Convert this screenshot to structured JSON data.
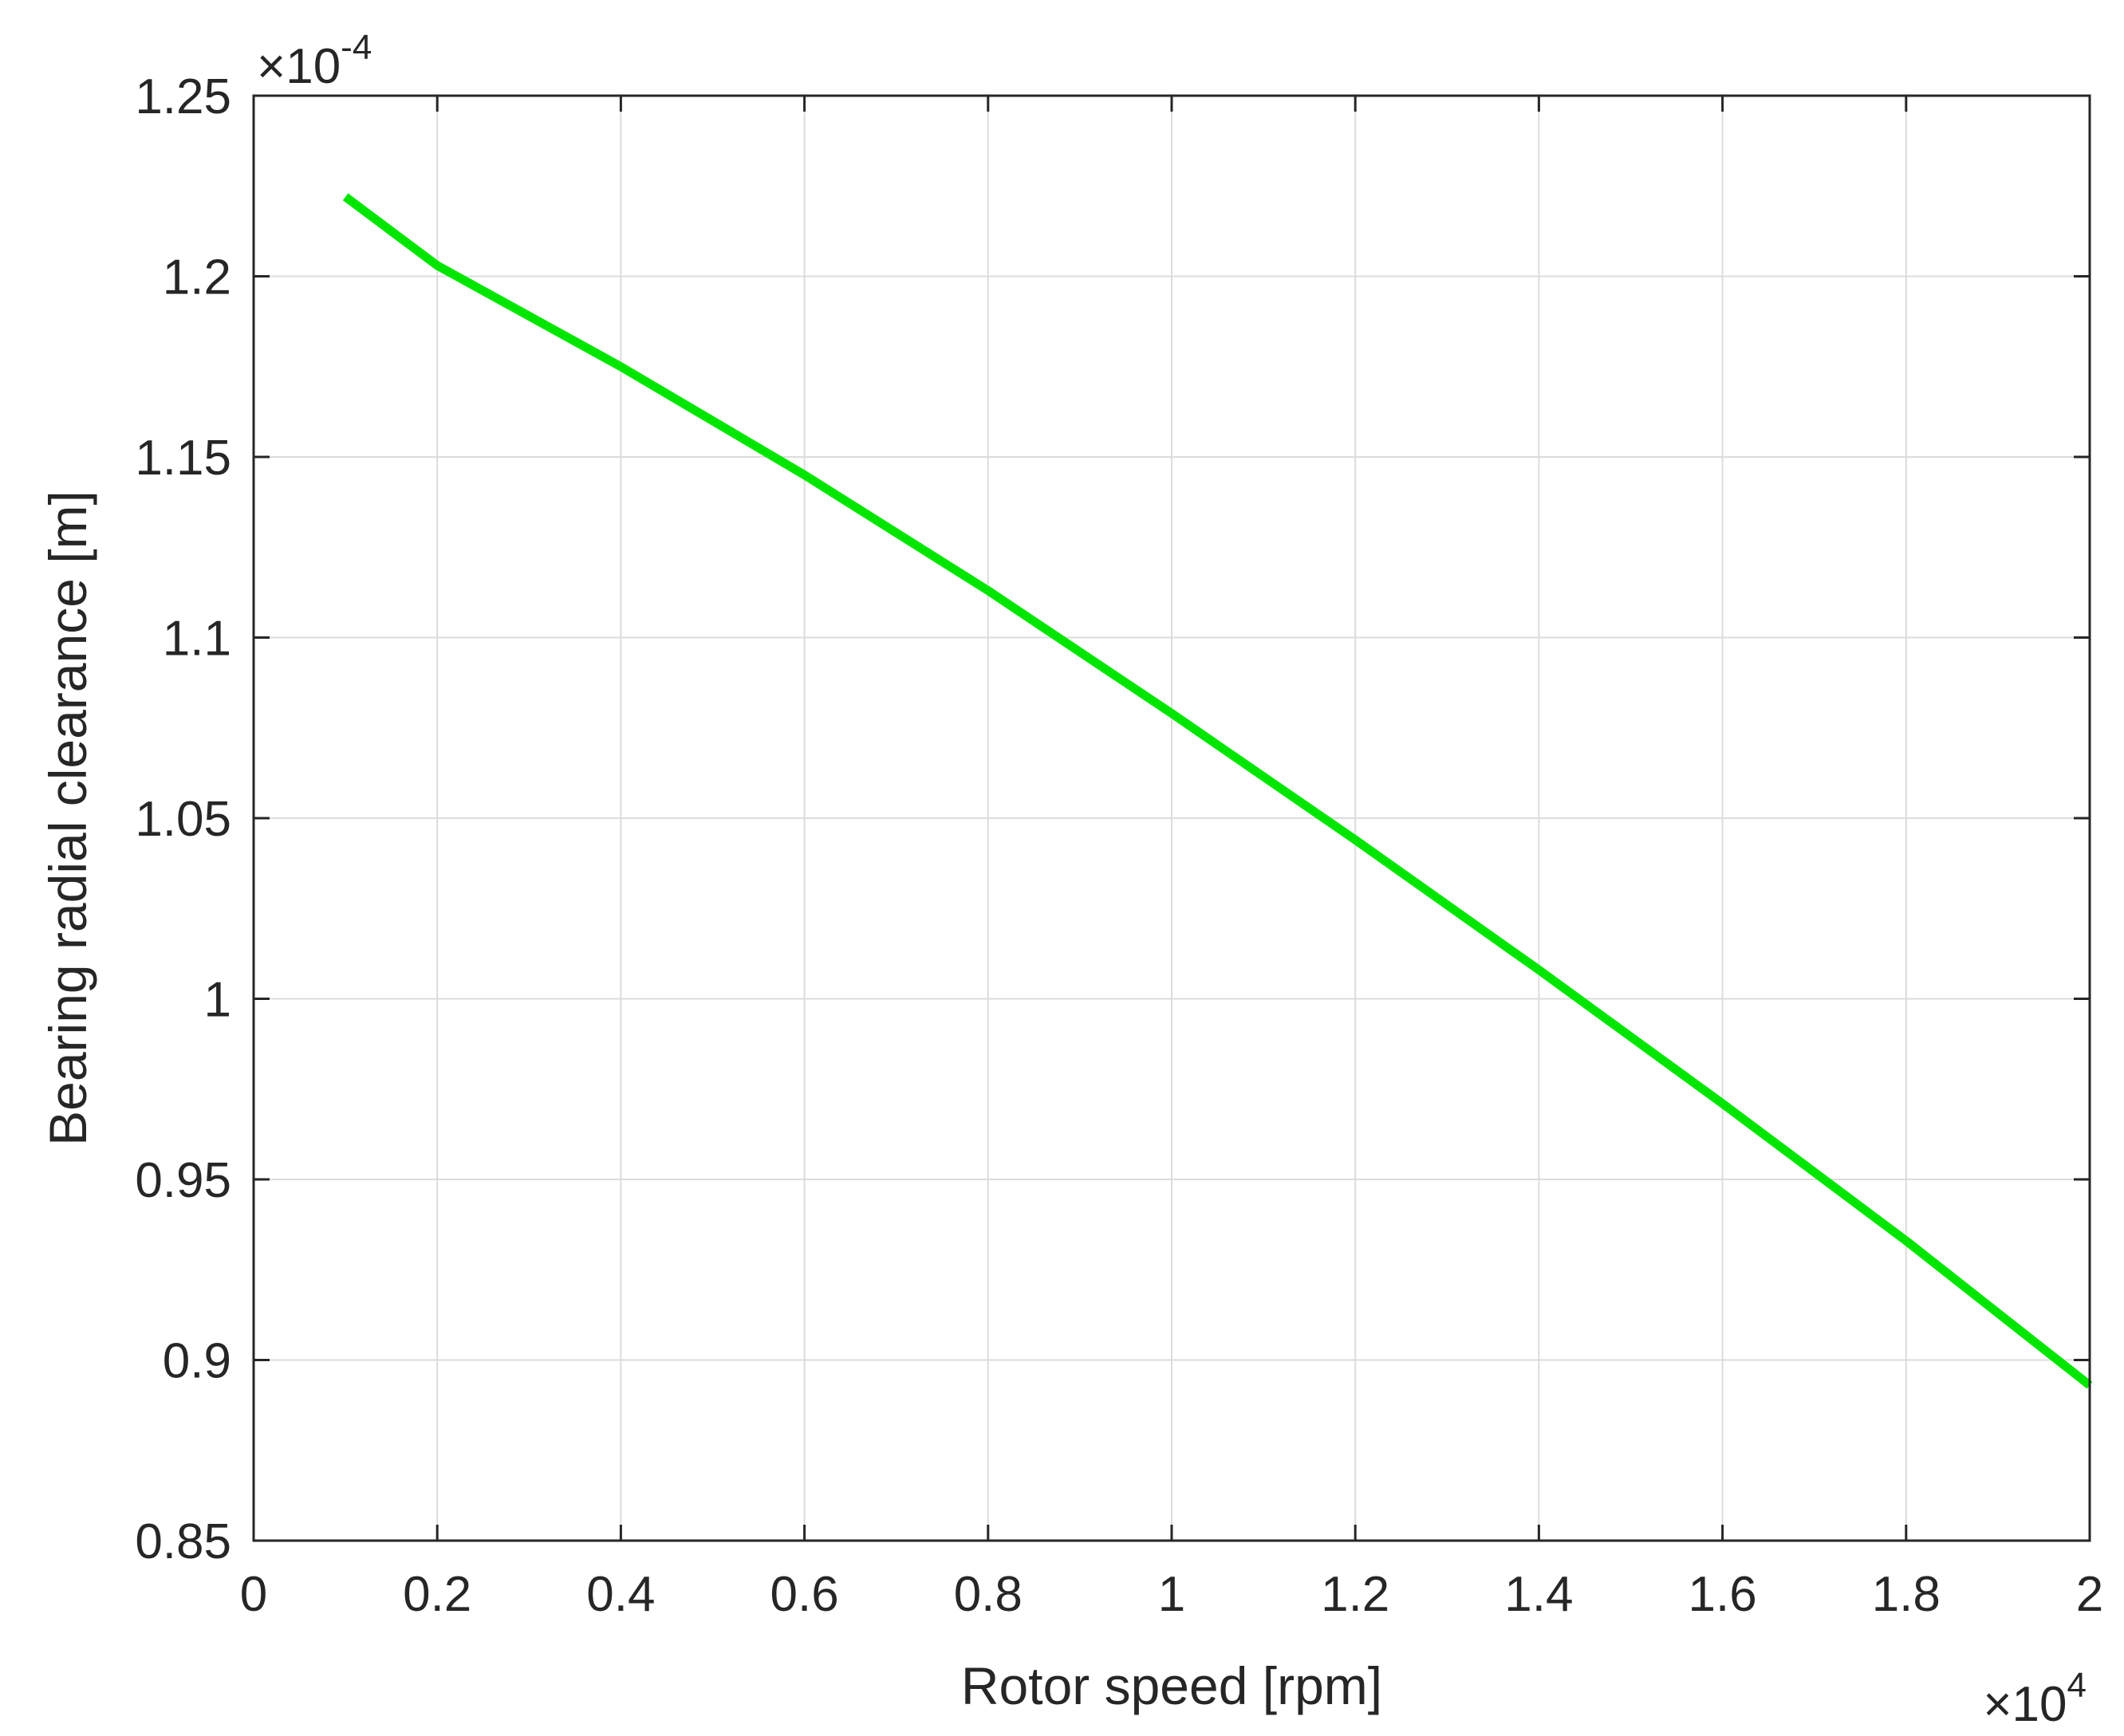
{
  "chart_data": {
    "type": "line",
    "title": "",
    "xlabel": "Rotor speed [rpm]",
    "ylabel": "Bearing radial clearance [m]",
    "x_exponent": {
      "base": "×10",
      "power": "4"
    },
    "y_exponent": {
      "base": "×10",
      "power": "-4"
    },
    "xlim": [
      0,
      20000
    ],
    "ylim": [
      8.5e-05,
      0.000125
    ],
    "x_ticks": [
      {
        "value": 0,
        "label": "0"
      },
      {
        "value": 2000,
        "label": "0.2"
      },
      {
        "value": 4000,
        "label": "0.4"
      },
      {
        "value": 6000,
        "label": "0.6"
      },
      {
        "value": 8000,
        "label": "0.8"
      },
      {
        "value": 10000,
        "label": "1"
      },
      {
        "value": 12000,
        "label": "1.2"
      },
      {
        "value": 14000,
        "label": "1.4"
      },
      {
        "value": 16000,
        "label": "1.6"
      },
      {
        "value": 18000,
        "label": "1.8"
      },
      {
        "value": 20000,
        "label": "2"
      }
    ],
    "y_ticks": [
      {
        "value": 8.5e-05,
        "label": "0.85"
      },
      {
        "value": 9e-05,
        "label": "0.9"
      },
      {
        "value": 9.5e-05,
        "label": "0.95"
      },
      {
        "value": 0.0001,
        "label": "1"
      },
      {
        "value": 0.000105,
        "label": "1.05"
      },
      {
        "value": 0.00011,
        "label": "1.1"
      },
      {
        "value": 0.000115,
        "label": "1.15"
      },
      {
        "value": 0.00012,
        "label": "1.2"
      },
      {
        "value": 0.000125,
        "label": "1.25"
      }
    ],
    "grid": true,
    "series": [
      {
        "color": "#00e600",
        "x": [
          1000,
          2000,
          4000,
          6000,
          8000,
          10000,
          12000,
          14000,
          16000,
          18000,
          20000
        ],
        "y": [
          0.0001222,
          0.0001203,
          0.0001175,
          0.0001145,
          0.0001113,
          0.0001079,
          0.0001044,
          0.0001008,
          9.71e-05,
          9.33e-05,
          8.93e-05
        ]
      }
    ]
  }
}
